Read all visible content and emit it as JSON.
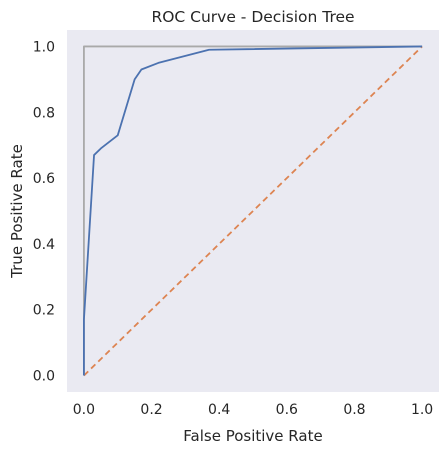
{
  "chart_data": {
    "type": "line",
    "title": "ROC Curve - Decision Tree",
    "xlabel": "False Positive Rate",
    "ylabel": "True Positive Rate",
    "xlim": [
      -0.05,
      1.05
    ],
    "ylim": [
      -0.05,
      1.05
    ],
    "grid": false,
    "xticks": [
      0.0,
      0.2,
      0.4,
      0.6,
      0.8,
      1.0
    ],
    "yticks": [
      0.0,
      0.2,
      0.4,
      0.6,
      0.8,
      1.0
    ],
    "xtick_labels": [
      "0.0",
      "0.2",
      "0.4",
      "0.6",
      "0.8",
      "1.0"
    ],
    "ytick_labels": [
      "0.0",
      "0.2",
      "0.4",
      "0.6",
      "0.8",
      "1.0"
    ],
    "series": [
      {
        "style": "solid",
        "color": "#4c72b0",
        "x": [
          0.0,
          0.0,
          0.03,
          0.05,
          0.1,
          0.15,
          0.17,
          0.22,
          0.37,
          1.0
        ],
        "y": [
          0.0,
          0.17,
          0.67,
          0.69,
          0.73,
          0.9,
          0.93,
          0.95,
          0.99,
          1.0
        ]
      },
      {
        "style": "dashed",
        "color": "#dd8452",
        "x": [
          0.0,
          1.0
        ],
        "y": [
          0.0,
          1.0
        ]
      },
      {
        "style": "solid",
        "color": "#a9a9a9",
        "x": [
          0.0,
          0.0,
          1.0
        ],
        "y": [
          0.0,
          1.0,
          1.0
        ]
      }
    ],
    "colors": {
      "plot_background": "#eaeaf2"
    }
  }
}
